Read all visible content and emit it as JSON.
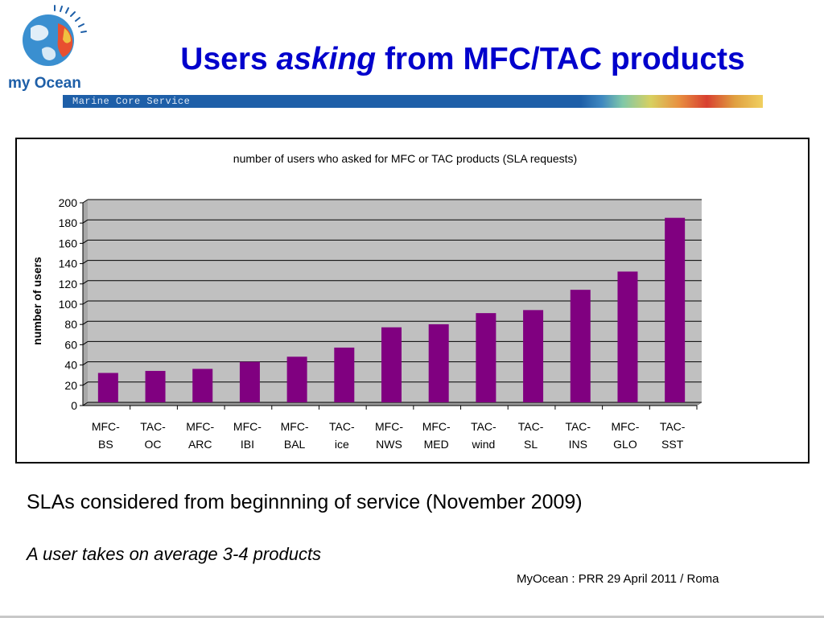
{
  "header": {
    "logo_text": "my Ocean",
    "title_before": "Users ",
    "title_italic": "asking",
    "title_after": " from MFC/TAC products",
    "banner_text": "Marine Core Service"
  },
  "chart_data": {
    "type": "bar",
    "title": "number of users who asked for MFC or TAC products (SLA requests)",
    "xlabel": "",
    "ylabel": "number of users",
    "ylim": [
      0,
      200
    ],
    "yticks": [
      0,
      20,
      40,
      60,
      80,
      100,
      120,
      140,
      160,
      180,
      200
    ],
    "categories": [
      [
        "MFC-",
        "BS"
      ],
      [
        "TAC-",
        "OC"
      ],
      [
        "MFC-",
        "ARC"
      ],
      [
        "MFC-",
        "IBI"
      ],
      [
        "MFC-",
        "BAL"
      ],
      [
        "TAC-",
        "ice"
      ],
      [
        "MFC-",
        "NWS"
      ],
      [
        "MFC-",
        "MED"
      ],
      [
        "TAC-",
        "wind"
      ],
      [
        "TAC-",
        "SL"
      ],
      [
        "TAC-",
        "INS"
      ],
      [
        "MFC-",
        "GLO"
      ],
      [
        "TAC-",
        "SST"
      ]
    ],
    "values": [
      29,
      31,
      33,
      40,
      45,
      54,
      74,
      77,
      88,
      91,
      111,
      129,
      182
    ],
    "grid": true,
    "legend": "none",
    "colors": {
      "bar": "#800080",
      "plot_bg": "#c0c0c0",
      "grid": "#000000"
    }
  },
  "notes": {
    "line1": "SLAs considered from beginnning of service (November 2009)",
    "line2": "A user takes on average 3-4 products"
  },
  "footer": {
    "text": "MyOcean : PRR 29 April 2011 / Roma"
  }
}
